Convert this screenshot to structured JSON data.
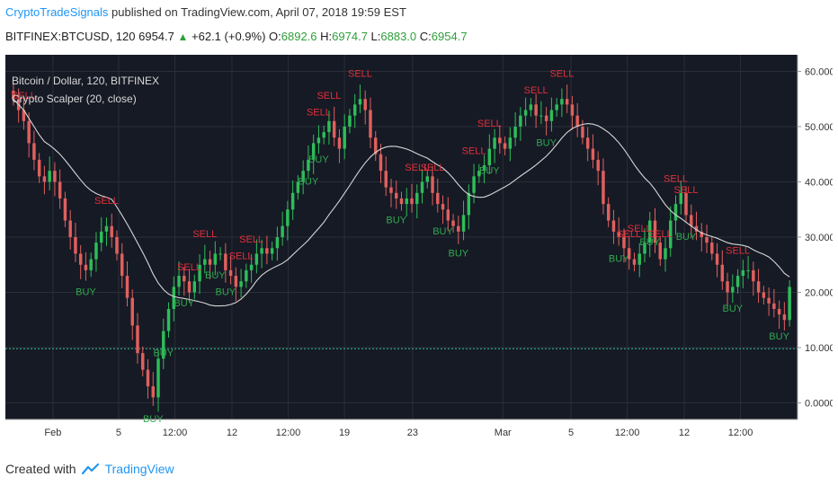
{
  "header": {
    "author": "CryptoTradeSignals",
    "published_text": "published on TradingView.com, April 07, 2018 19:59 EST"
  },
  "ohlc": {
    "symbol": "BITFINEX:BTCUSD, 120",
    "last": "6954.7",
    "change": "+62.1 (+0.9%)",
    "o_label": "O:",
    "o": "6892.6",
    "h_label": "H:",
    "h": "6974.7",
    "l_label": "L:",
    "l": "6883.0",
    "c_label": "C:",
    "c": "6954.7"
  },
  "chart": {
    "series_title": "Bitcoin / Dollar, 120, BITFINEX",
    "indicator_title": "Crypto Scalper (20, close)"
  },
  "chart_data": {
    "type": "line",
    "y_ticks": [
      "60.0000",
      "50.0000",
      "40.0000",
      "30.0000",
      "20.0000",
      "10.0000",
      "0.0000"
    ],
    "y_tick_values": [
      60,
      50,
      40,
      30,
      20,
      10,
      0
    ],
    "ylim": [
      -3,
      63
    ],
    "x_labels": [
      "Feb",
      "5",
      "12:00",
      "12",
      "12:00",
      "19",
      "23",
      "Mar",
      "5",
      "12:00",
      "12",
      "12:00"
    ],
    "x_label_positions": [
      0.06,
      0.143,
      0.214,
      0.286,
      0.357,
      0.428,
      0.514,
      0.628,
      0.714,
      0.785,
      0.857,
      0.928
    ],
    "reference_level": 9.8,
    "close": [
      55,
      53,
      51,
      47,
      44,
      41,
      40,
      42,
      40,
      37,
      33,
      30,
      27,
      25,
      24,
      26,
      29,
      31,
      32,
      30,
      27,
      23,
      19,
      14,
      9,
      6,
      3,
      1,
      8,
      13,
      17,
      21,
      23,
      22,
      20,
      22,
      25,
      26,
      25,
      27,
      27,
      24,
      23,
      21,
      22,
      24,
      25,
      27,
      28,
      27,
      28,
      30,
      32,
      35,
      38,
      40,
      42,
      44,
      47,
      48,
      49,
      51,
      48,
      46,
      50,
      52,
      54,
      55,
      53,
      48,
      45,
      42,
      39,
      38,
      37,
      36,
      37,
      36,
      38,
      40,
      41,
      38,
      36,
      35,
      33,
      32,
      31,
      34,
      38,
      41,
      42,
      43,
      46,
      48,
      47,
      46,
      48,
      50,
      52,
      53,
      54,
      52,
      52,
      51,
      53,
      54,
      55,
      54,
      52,
      50,
      48,
      46,
      44,
      42,
      36,
      33,
      31,
      30,
      28,
      26,
      25,
      27,
      29,
      33,
      29,
      26,
      28,
      33,
      36,
      38,
      34,
      32,
      31,
      30,
      29,
      27,
      25,
      22,
      20,
      21,
      23,
      24,
      24,
      22,
      20,
      19,
      18,
      17,
      16,
      15,
      21
    ],
    "sell_signals": [
      {
        "i": 2,
        "label": "SELL"
      },
      {
        "i": 18,
        "label": "SELL"
      },
      {
        "i": 34,
        "label": "SELL"
      },
      {
        "i": 37,
        "label": "SELL"
      },
      {
        "i": 44,
        "label": "SELL"
      },
      {
        "i": 46,
        "label": "SELL"
      },
      {
        "i": 59,
        "label": "SELL"
      },
      {
        "i": 61,
        "label": "SELL"
      },
      {
        "i": 67,
        "label": "SELL"
      },
      {
        "i": 78,
        "label": "SELL"
      },
      {
        "i": 81,
        "label": "SELL"
      },
      {
        "i": 89,
        "label": "SELL"
      },
      {
        "i": 92,
        "label": "SELL"
      },
      {
        "i": 101,
        "label": "SELL"
      },
      {
        "i": 106,
        "label": "SELL"
      },
      {
        "i": 119,
        "label": "SELL"
      },
      {
        "i": 121,
        "label": "SELL"
      },
      {
        "i": 125,
        "label": "SELL"
      },
      {
        "i": 128,
        "label": "SELL"
      },
      {
        "i": 130,
        "label": "SELL"
      },
      {
        "i": 140,
        "label": "SELL"
      }
    ],
    "buy_signals": [
      {
        "i": 14,
        "label": "BUY"
      },
      {
        "i": 27,
        "label": "BUY"
      },
      {
        "i": 29,
        "label": "BUY"
      },
      {
        "i": 33,
        "label": "BUY"
      },
      {
        "i": 39,
        "label": "BUY"
      },
      {
        "i": 41,
        "label": "BUY"
      },
      {
        "i": 57,
        "label": "BUY"
      },
      {
        "i": 59,
        "label": "BUY"
      },
      {
        "i": 74,
        "label": "BUY"
      },
      {
        "i": 83,
        "label": "BUY"
      },
      {
        "i": 86,
        "label": "BUY"
      },
      {
        "i": 92,
        "label": "BUY"
      },
      {
        "i": 103,
        "label": "BUY"
      },
      {
        "i": 117,
        "label": "BUY"
      },
      {
        "i": 123,
        "label": "BUY"
      },
      {
        "i": 130,
        "label": "BUY"
      },
      {
        "i": 139,
        "label": "BUY"
      },
      {
        "i": 148,
        "label": "BUY"
      }
    ],
    "colors": {
      "background": "#161a25",
      "grid": "#2a2e39",
      "bull": "#2ebd59",
      "bear": "#e0605e",
      "ma": "#d5d5d5",
      "sell_text": "#e0303a",
      "buy_text": "#2fa84f",
      "reference": "#2ebd85",
      "axis_text": "#333333",
      "title_text": "#d8d8d8"
    }
  },
  "footer": {
    "created_with": "Created with",
    "brand": "TradingView"
  }
}
